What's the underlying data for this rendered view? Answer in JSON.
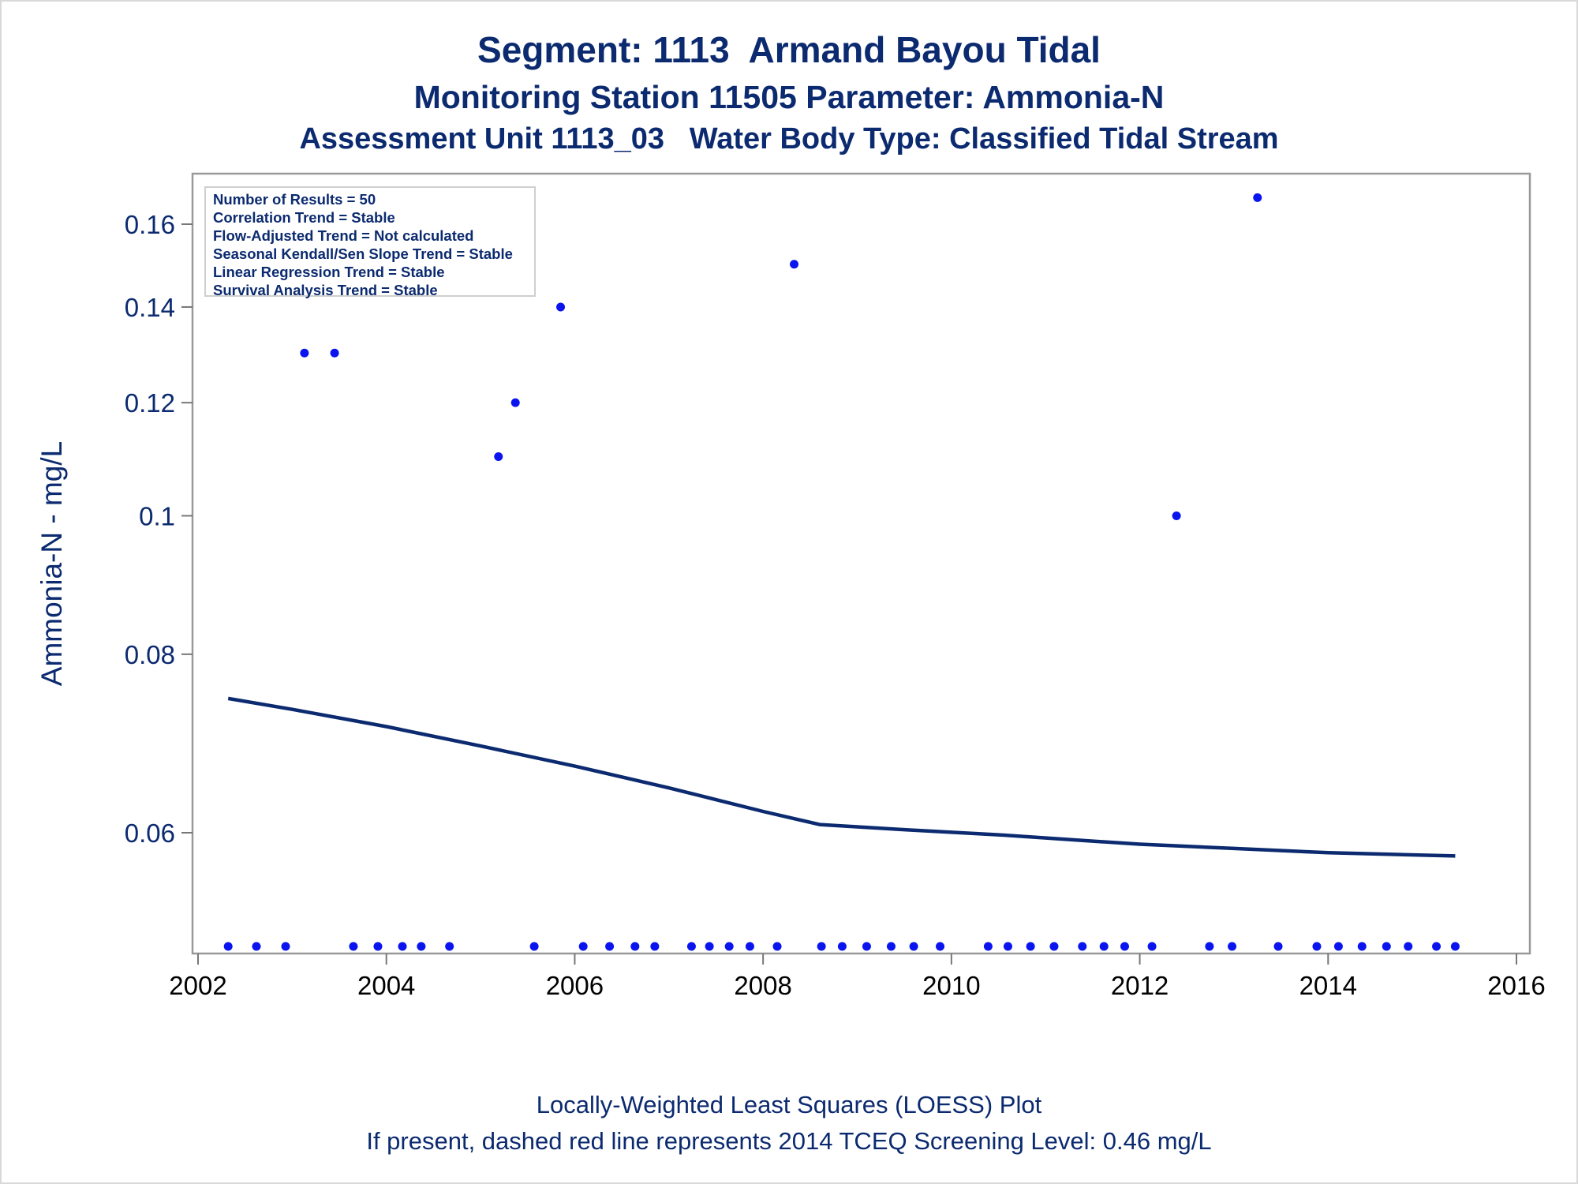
{
  "titles": {
    "line1": "Segment: 1113  Armand Bayou Tidal",
    "line2": "Monitoring Station 11505 Parameter: Ammonia-N",
    "line3": "Assessment Unit 1113_03   Water Body Type: Classified Tidal Stream"
  },
  "stats_box": {
    "lines": [
      "Number of Results = 50",
      "Correlation Trend = Stable",
      "Flow-Adjusted Trend = Not calculated",
      "Seasonal Kendall/Sen Slope Trend = Stable",
      "Linear Regression Trend = Stable",
      "Survival Analysis Trend = Stable"
    ]
  },
  "footer": {
    "line1": "Locally-Weighted Least Squares (LOESS) Plot",
    "line2": "If present, dashed red line represents 2014 TCEQ Screening Level: 0.46 mg/L"
  },
  "colors": {
    "text": "#0b2a6f",
    "points": "#0a14ee",
    "loess": "#0b2a6f",
    "frame": "#999999"
  },
  "chart_data": {
    "type": "scatter",
    "title": "Segment: 1113  Armand Bayou Tidal",
    "xlabel": "",
    "ylabel": "Ammonia-N - mg/L",
    "yscale": "log",
    "xlim": [
      2002,
      2016
    ],
    "ylim": [
      0.05,
      0.17
    ],
    "xticks": [
      2002,
      2004,
      2006,
      2008,
      2010,
      2012,
      2014,
      2016
    ],
    "xtick_labels": [
      "2002",
      "2004",
      "2006",
      "2008",
      "2010",
      "2012",
      "2014",
      "2016"
    ],
    "yticks": [
      0.06,
      0.08,
      0.1,
      0.12,
      0.14,
      0.16
    ],
    "ytick_labels": [
      "0.06",
      "0.08",
      "0.1",
      "0.12",
      "0.14",
      "0.16"
    ],
    "grid": false,
    "series": [
      {
        "kind": "points",
        "x": [
          2002.32,
          2002.62,
          2002.93,
          2003.13,
          2003.45,
          2003.65,
          2003.91,
          2004.17,
          2004.37,
          2004.67,
          2005.19,
          2005.37,
          2005.57,
          2005.85,
          2006.09,
          2006.37,
          2006.64,
          2006.85,
          2007.24,
          2007.43,
          2007.64,
          2007.86,
          2008.15,
          2008.33,
          2008.62,
          2008.84,
          2009.1,
          2009.36,
          2009.6,
          2009.88,
          2010.39,
          2010.6,
          2010.84,
          2011.09,
          2011.39,
          2011.62,
          2011.84,
          2012.13,
          2012.39,
          2012.74,
          2012.98,
          2013.25,
          2013.47,
          2013.88,
          2014.11,
          2014.36,
          2014.62,
          2014.85,
          2015.15,
          2015.35
        ],
        "y": [
          0.05,
          0.05,
          0.05,
          0.13,
          0.13,
          0.05,
          0.05,
          0.05,
          0.05,
          0.05,
          0.11,
          0.12,
          0.05,
          0.14,
          0.05,
          0.05,
          0.05,
          0.05,
          0.05,
          0.05,
          0.05,
          0.05,
          0.05,
          0.15,
          0.05,
          0.05,
          0.05,
          0.05,
          0.05,
          0.05,
          0.05,
          0.05,
          0.05,
          0.05,
          0.05,
          0.05,
          0.05,
          0.05,
          0.1,
          0.05,
          0.05,
          0.167,
          0.05,
          0.05,
          0.05,
          0.05,
          0.05,
          0.05,
          0.05,
          0.05
        ]
      },
      {
        "kind": "loess",
        "x": [
          2002.32,
          2003.0,
          2004.0,
          2005.0,
          2006.0,
          2007.0,
          2008.0,
          2008.6,
          2009.5,
          2010.5,
          2011.5,
          2012.0,
          2013.0,
          2014.0,
          2015.35
        ],
        "y": [
          0.0745,
          0.0732,
          0.0712,
          0.069,
          0.0668,
          0.0645,
          0.0621,
          0.0608,
          0.0603,
          0.0598,
          0.0592,
          0.0589,
          0.0585,
          0.0581,
          0.0578
        ]
      }
    ]
  }
}
